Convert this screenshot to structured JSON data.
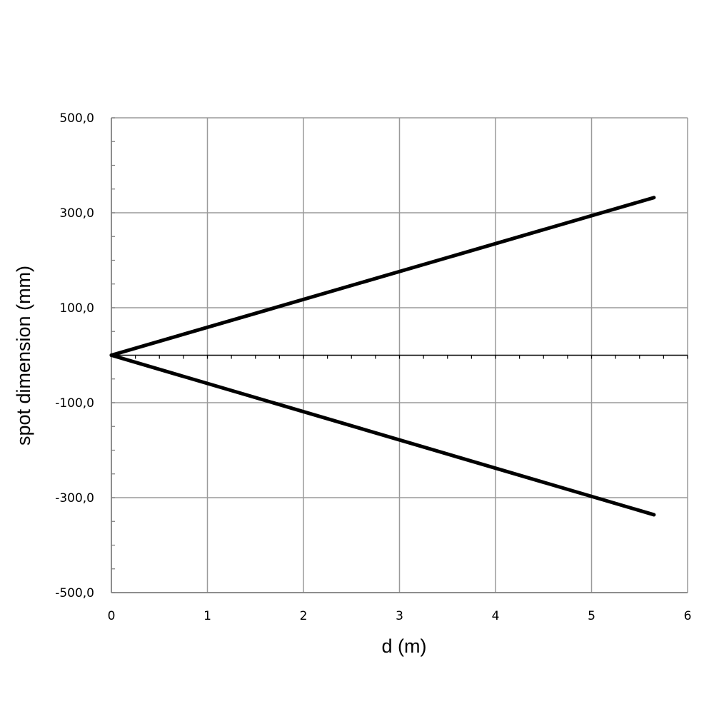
{
  "chart_data": {
    "type": "line",
    "title": "",
    "xlabel": "d (m)",
    "ylabel": "spot dimension (mm)",
    "xlim": [
      0,
      6
    ],
    "ylim": [
      -500,
      500
    ],
    "x_ticks": [
      0,
      1,
      2,
      3,
      4,
      5,
      6
    ],
    "x_tick_labels": [
      "0",
      "1",
      "2",
      "3",
      "4",
      "5",
      "6"
    ],
    "y_ticks": [
      500,
      300,
      100,
      -100,
      -300,
      -500
    ],
    "y_tick_labels": [
      "500,0",
      "300,0",
      "100,0",
      "-100,0",
      "-300,0",
      "-500,0"
    ],
    "grid": true,
    "legend": "none",
    "series": [
      {
        "x": [
          0,
          5.65
        ],
        "y": [
          0,
          332
        ],
        "color": "#000000"
      },
      {
        "x": [
          0,
          5.65
        ],
        "y": [
          0,
          -336
        ],
        "color": "#000000"
      }
    ]
  }
}
